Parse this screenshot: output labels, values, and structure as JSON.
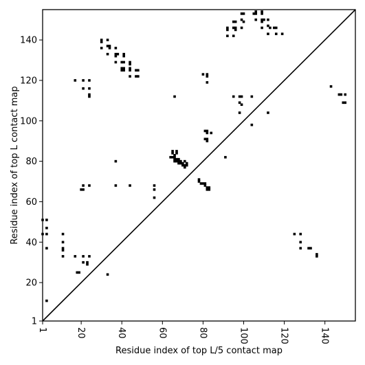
{
  "chart_data": {
    "type": "scatter",
    "xlabel": "Residue index of top L/5 contact map",
    "ylabel": "Residue index of top L contact map",
    "xlim": [
      1,
      155
    ],
    "ylim": [
      1,
      155
    ],
    "x_ticks": [
      1,
      20,
      40,
      60,
      80,
      100,
      120,
      140
    ],
    "y_ticks": [
      1,
      20,
      40,
      60,
      80,
      100,
      120,
      140
    ],
    "grid": false,
    "diagonal": true,
    "marker_color": "#000000",
    "lower_triangle_points": [
      [
        143,
        117
      ],
      [
        147,
        113
      ],
      [
        148,
        113
      ],
      [
        150,
        113
      ],
      [
        149,
        109
      ],
      [
        150,
        109
      ],
      [
        125,
        44
      ],
      [
        128,
        44
      ],
      [
        128,
        40
      ],
      [
        128,
        37
      ],
      [
        132,
        37
      ],
      [
        133,
        37
      ],
      [
        136,
        34
      ],
      [
        136,
        33
      ]
    ],
    "upper_triangle_points": [
      [
        1,
        51
      ],
      [
        3,
        51
      ],
      [
        3,
        47
      ],
      [
        1,
        44
      ],
      [
        3,
        44
      ],
      [
        3,
        37
      ],
      [
        3,
        11
      ],
      [
        11,
        44
      ],
      [
        11,
        40
      ],
      [
        11,
        37
      ],
      [
        11,
        36
      ],
      [
        11,
        33
      ],
      [
        17,
        33
      ],
      [
        18,
        25
      ],
      [
        19,
        25
      ],
      [
        21,
        33
      ],
      [
        21,
        30
      ],
      [
        23,
        30
      ],
      [
        23,
        29
      ],
      [
        24,
        33
      ],
      [
        17,
        120
      ],
      [
        21,
        120
      ],
      [
        24,
        120
      ],
      [
        21,
        116
      ],
      [
        24,
        116
      ],
      [
        24,
        113
      ],
      [
        24,
        112
      ],
      [
        20,
        66
      ],
      [
        21,
        66
      ],
      [
        21,
        68
      ],
      [
        24,
        68
      ],
      [
        33,
        24
      ],
      [
        37,
        80
      ],
      [
        30,
        140
      ],
      [
        30,
        139
      ],
      [
        30,
        136
      ],
      [
        33,
        140
      ],
      [
        33,
        137
      ],
      [
        34,
        137
      ],
      [
        34,
        136
      ],
      [
        33,
        133
      ],
      [
        37,
        136
      ],
      [
        37,
        133
      ],
      [
        38,
        133
      ],
      [
        37,
        132
      ],
      [
        37,
        129
      ],
      [
        40,
        129
      ],
      [
        41,
        133
      ],
      [
        41,
        132
      ],
      [
        41,
        129
      ],
      [
        40,
        126
      ],
      [
        40,
        125
      ],
      [
        41,
        126
      ],
      [
        41,
        125
      ],
      [
        44,
        129
      ],
      [
        44,
        128
      ],
      [
        44,
        126
      ],
      [
        44,
        125
      ],
      [
        44,
        122
      ],
      [
        47,
        125
      ],
      [
        48,
        125
      ],
      [
        47,
        122
      ],
      [
        48,
        122
      ],
      [
        37,
        68
      ],
      [
        44,
        68
      ],
      [
        56,
        68
      ],
      [
        56,
        66
      ],
      [
        56,
        62
      ],
      [
        66,
        112
      ],
      [
        65,
        85
      ],
      [
        65,
        84
      ],
      [
        67,
        85
      ],
      [
        67,
        84
      ],
      [
        64,
        82
      ],
      [
        65,
        82
      ],
      [
        66,
        82
      ],
      [
        66,
        83
      ],
      [
        66,
        81
      ],
      [
        67,
        81
      ],
      [
        67,
        80
      ],
      [
        68,
        80
      ],
      [
        68,
        81
      ],
      [
        69,
        80
      ],
      [
        69,
        79
      ],
      [
        70,
        79
      ],
      [
        70,
        78
      ],
      [
        71,
        78
      ],
      [
        71,
        77
      ],
      [
        71,
        80
      ],
      [
        72,
        79
      ],
      [
        72,
        78
      ],
      [
        66,
        80
      ],
      [
        68,
        79
      ],
      [
        78,
        71
      ],
      [
        78,
        70
      ],
      [
        79,
        69
      ],
      [
        80,
        69
      ],
      [
        81,
        68
      ],
      [
        81,
        69
      ],
      [
        82,
        67
      ],
      [
        83,
        67
      ],
      [
        82,
        66
      ],
      [
        83,
        66
      ],
      [
        80,
        123
      ],
      [
        82,
        123
      ],
      [
        82,
        122
      ],
      [
        82,
        119
      ],
      [
        81,
        95
      ],
      [
        82,
        95
      ],
      [
        82,
        94
      ],
      [
        84,
        94
      ],
      [
        81,
        91
      ],
      [
        82,
        91
      ],
      [
        82,
        90
      ],
      [
        91,
        82
      ],
      [
        92,
        146
      ],
      [
        92,
        145
      ],
      [
        92,
        142
      ],
      [
        95,
        149
      ],
      [
        96,
        149
      ],
      [
        95,
        146
      ],
      [
        96,
        146
      ],
      [
        96,
        145
      ],
      [
        95,
        142
      ],
      [
        99,
        153
      ],
      [
        100,
        153
      ],
      [
        99,
        150
      ],
      [
        100,
        149
      ],
      [
        99,
        146
      ],
      [
        95,
        112
      ],
      [
        98,
        112
      ],
      [
        99,
        112
      ],
      [
        98,
        109
      ],
      [
        99,
        108
      ],
      [
        98,
        104
      ],
      [
        104,
        112
      ],
      [
        104,
        98
      ],
      [
        105,
        153
      ],
      [
        106,
        153
      ],
      [
        106,
        154
      ],
      [
        106,
        150
      ],
      [
        109,
        154
      ],
      [
        109,
        153
      ],
      [
        109,
        150
      ],
      [
        110,
        150
      ],
      [
        109,
        149
      ],
      [
        109,
        146
      ],
      [
        112,
        150
      ],
      [
        112,
        147
      ],
      [
        113,
        146
      ],
      [
        112,
        143
      ],
      [
        115,
        146
      ],
      [
        116,
        146
      ],
      [
        116,
        143
      ],
      [
        119,
        143
      ],
      [
        112,
        104
      ]
    ]
  }
}
